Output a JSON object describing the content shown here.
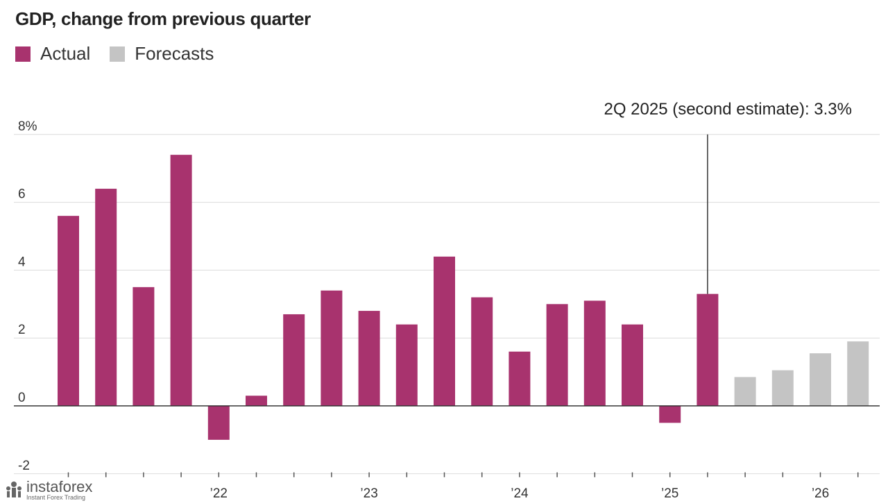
{
  "chart_data": {
    "type": "bar",
    "title": "GDP, change from previous quarter",
    "legend": [
      {
        "label": "Actual",
        "color": "#a8336e"
      },
      {
        "label": "Forecasts",
        "color": "#c4c4c4"
      }
    ],
    "ylim": [
      -2,
      8
    ],
    "y_ticks": [
      {
        "value": 8,
        "label": "8%"
      },
      {
        "value": 6,
        "label": "6"
      },
      {
        "value": 4,
        "label": "4"
      },
      {
        "value": 2,
        "label": "2"
      },
      {
        "value": 0,
        "label": "0"
      },
      {
        "value": -2,
        "label": "-2"
      }
    ],
    "x_year_labels": [
      {
        "index": 4,
        "label": "’22"
      },
      {
        "index": 8,
        "label": "’23"
      },
      {
        "index": 12,
        "label": "’24"
      },
      {
        "index": 16,
        "label": "’25"
      },
      {
        "index": 20,
        "label": "’26"
      }
    ],
    "series": [
      {
        "name": "Actual",
        "color": "#a8336e",
        "start_index": 0,
        "values": [
          5.6,
          6.4,
          3.5,
          7.4,
          -1.0,
          0.3,
          2.7,
          3.4,
          2.8,
          2.4,
          4.4,
          3.2,
          1.6,
          3.0,
          3.1,
          2.4,
          -0.5,
          3.3
        ]
      },
      {
        "name": "Forecasts",
        "color": "#c4c4c4",
        "start_index": 18,
        "values": [
          0.85,
          1.05,
          1.55,
          1.9
        ]
      }
    ],
    "annotation": {
      "index": 17,
      "text": "2Q 2025 (second estimate): 3.3%"
    }
  },
  "watermark": {
    "brand": "instaforex",
    "tagline": "Instant Forex Trading"
  }
}
